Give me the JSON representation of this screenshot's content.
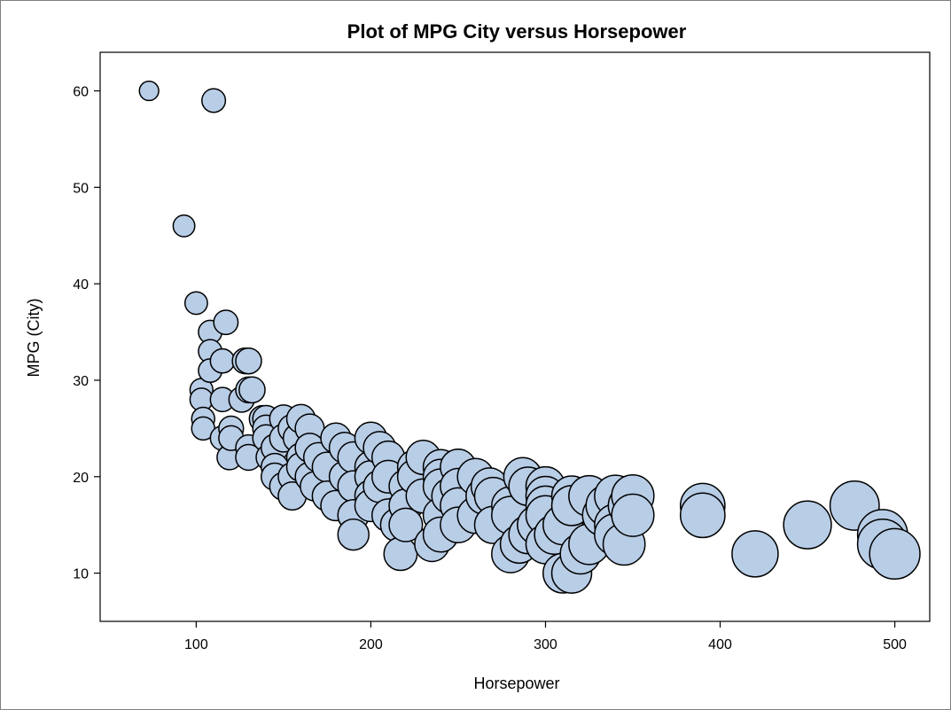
{
  "chart_data": {
    "type": "scatter",
    "title": "Plot of MPG City versus Horsepower",
    "xlabel": "Horsepower",
    "ylabel": "MPG (City)",
    "xlim": [
      45,
      520
    ],
    "ylim": [
      5,
      64
    ],
    "xticks": [
      100,
      200,
      300,
      400,
      500
    ],
    "yticks": [
      10,
      20,
      30,
      40,
      50,
      60
    ],
    "grid": false,
    "marker_color": "#b8cde6",
    "points": [
      {
        "x": 73,
        "y": 60
      },
      {
        "x": 110,
        "y": 59
      },
      {
        "x": 93,
        "y": 46
      },
      {
        "x": 100,
        "y": 38
      },
      {
        "x": 117,
        "y": 36
      },
      {
        "x": 108,
        "y": 35
      },
      {
        "x": 108,
        "y": 33
      },
      {
        "x": 115,
        "y": 32
      },
      {
        "x": 130,
        "y": 32
      },
      {
        "x": 128,
        "y": 32
      },
      {
        "x": 108,
        "y": 31
      },
      {
        "x": 103,
        "y": 29
      },
      {
        "x": 130,
        "y": 29
      },
      {
        "x": 132,
        "y": 29
      },
      {
        "x": 103,
        "y": 28
      },
      {
        "x": 115,
        "y": 28
      },
      {
        "x": 126,
        "y": 28
      },
      {
        "x": 104,
        "y": 26
      },
      {
        "x": 138,
        "y": 26
      },
      {
        "x": 140,
        "y": 26
      },
      {
        "x": 150,
        "y": 26
      },
      {
        "x": 160,
        "y": 26
      },
      {
        "x": 104,
        "y": 25
      },
      {
        "x": 120,
        "y": 25
      },
      {
        "x": 140,
        "y": 25
      },
      {
        "x": 155,
        "y": 25
      },
      {
        "x": 165,
        "y": 25
      },
      {
        "x": 115,
        "y": 24
      },
      {
        "x": 120,
        "y": 24
      },
      {
        "x": 140,
        "y": 24
      },
      {
        "x": 150,
        "y": 24
      },
      {
        "x": 158,
        "y": 24
      },
      {
        "x": 180,
        "y": 24
      },
      {
        "x": 200,
        "y": 24
      },
      {
        "x": 130,
        "y": 23
      },
      {
        "x": 145,
        "y": 23
      },
      {
        "x": 165,
        "y": 23
      },
      {
        "x": 185,
        "y": 23
      },
      {
        "x": 205,
        "y": 23
      },
      {
        "x": 119,
        "y": 22
      },
      {
        "x": 130,
        "y": 22
      },
      {
        "x": 142,
        "y": 22
      },
      {
        "x": 160,
        "y": 22
      },
      {
        "x": 170,
        "y": 22
      },
      {
        "x": 190,
        "y": 22
      },
      {
        "x": 210,
        "y": 22
      },
      {
        "x": 230,
        "y": 22
      },
      {
        "x": 145,
        "y": 21
      },
      {
        "x": 160,
        "y": 21
      },
      {
        "x": 175,
        "y": 21
      },
      {
        "x": 200,
        "y": 21
      },
      {
        "x": 225,
        "y": 21
      },
      {
        "x": 240,
        "y": 21
      },
      {
        "x": 250,
        "y": 21
      },
      {
        "x": 145,
        "y": 20
      },
      {
        "x": 155,
        "y": 20
      },
      {
        "x": 165,
        "y": 20
      },
      {
        "x": 185,
        "y": 20
      },
      {
        "x": 200,
        "y": 20
      },
      {
        "x": 210,
        "y": 20
      },
      {
        "x": 225,
        "y": 20
      },
      {
        "x": 240,
        "y": 20
      },
      {
        "x": 260,
        "y": 20
      },
      {
        "x": 287,
        "y": 20
      },
      {
        "x": 150,
        "y": 19
      },
      {
        "x": 168,
        "y": 19
      },
      {
        "x": 190,
        "y": 19
      },
      {
        "x": 205,
        "y": 19
      },
      {
        "x": 220,
        "y": 19
      },
      {
        "x": 240,
        "y": 19
      },
      {
        "x": 250,
        "y": 19
      },
      {
        "x": 268,
        "y": 19
      },
      {
        "x": 290,
        "y": 19
      },
      {
        "x": 300,
        "y": 19
      },
      {
        "x": 155,
        "y": 18
      },
      {
        "x": 175,
        "y": 18
      },
      {
        "x": 200,
        "y": 18
      },
      {
        "x": 230,
        "y": 18
      },
      {
        "x": 245,
        "y": 18
      },
      {
        "x": 265,
        "y": 18
      },
      {
        "x": 270,
        "y": 18
      },
      {
        "x": 300,
        "y": 18
      },
      {
        "x": 315,
        "y": 18
      },
      {
        "x": 325,
        "y": 18
      },
      {
        "x": 340,
        "y": 18
      },
      {
        "x": 350,
        "y": 18
      },
      {
        "x": 180,
        "y": 17
      },
      {
        "x": 200,
        "y": 17
      },
      {
        "x": 220,
        "y": 17
      },
      {
        "x": 250,
        "y": 17
      },
      {
        "x": 280,
        "y": 17
      },
      {
        "x": 300,
        "y": 17
      },
      {
        "x": 315,
        "y": 17
      },
      {
        "x": 335,
        "y": 17
      },
      {
        "x": 348,
        "y": 17
      },
      {
        "x": 390,
        "y": 17
      },
      {
        "x": 477,
        "y": 17
      },
      {
        "x": 190,
        "y": 16
      },
      {
        "x": 210,
        "y": 16
      },
      {
        "x": 240,
        "y": 16
      },
      {
        "x": 260,
        "y": 16
      },
      {
        "x": 280,
        "y": 16
      },
      {
        "x": 300,
        "y": 16
      },
      {
        "x": 333,
        "y": 16
      },
      {
        "x": 350,
        "y": 16
      },
      {
        "x": 390,
        "y": 16
      },
      {
        "x": 215,
        "y": 15
      },
      {
        "x": 220,
        "y": 15
      },
      {
        "x": 250,
        "y": 15
      },
      {
        "x": 270,
        "y": 15
      },
      {
        "x": 295,
        "y": 15
      },
      {
        "x": 310,
        "y": 15
      },
      {
        "x": 340,
        "y": 15
      },
      {
        "x": 450,
        "y": 15
      },
      {
        "x": 190,
        "y": 14
      },
      {
        "x": 240,
        "y": 14
      },
      {
        "x": 290,
        "y": 14
      },
      {
        "x": 305,
        "y": 14
      },
      {
        "x": 340,
        "y": 14
      },
      {
        "x": 493,
        "y": 14
      },
      {
        "x": 235,
        "y": 13
      },
      {
        "x": 285,
        "y": 13
      },
      {
        "x": 300,
        "y": 13
      },
      {
        "x": 325,
        "y": 13
      },
      {
        "x": 345,
        "y": 13
      },
      {
        "x": 493,
        "y": 13
      },
      {
        "x": 217,
        "y": 12
      },
      {
        "x": 280,
        "y": 12
      },
      {
        "x": 320,
        "y": 12
      },
      {
        "x": 420,
        "y": 12
      },
      {
        "x": 500,
        "y": 12
      },
      {
        "x": 310,
        "y": 10
      },
      {
        "x": 315,
        "y": 10
      }
    ]
  }
}
